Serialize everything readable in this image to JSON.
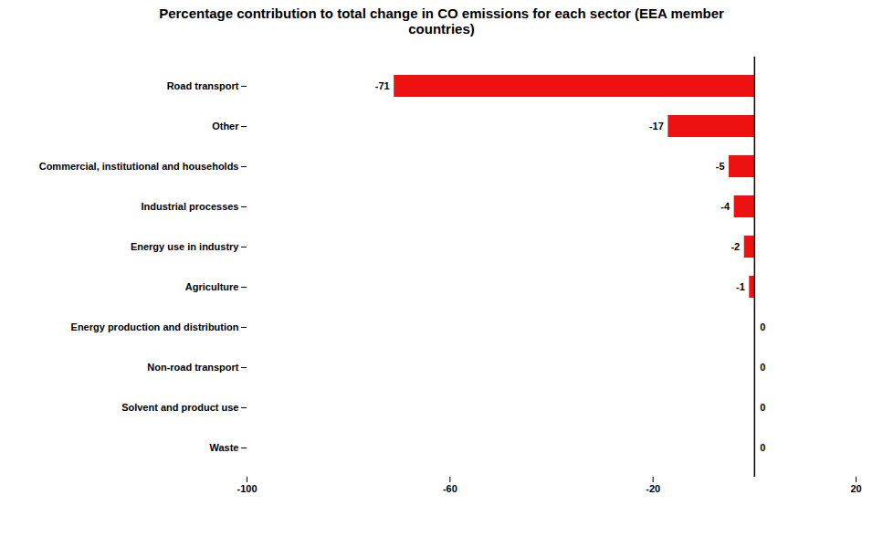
{
  "chart_data": {
    "type": "bar",
    "orientation": "horizontal",
    "title": "Percentage contribution to total change in CO emissions for each sector (EEA member\ncountries)",
    "categories": [
      "Waste",
      "Solvent and product use",
      "Non-road transport",
      "Energy production and distribution",
      "Agriculture",
      "Energy use in industry",
      "Industrial processes",
      "Commercial, institutional and households",
      "Other",
      "Road transport"
    ],
    "values": [
      0,
      0,
      0,
      0,
      -1,
      -2,
      -4,
      -5,
      -17,
      -71
    ],
    "color": "#ee1111",
    "xlim": [
      -100,
      20
    ],
    "xticks": [
      -100,
      -60,
      -20,
      20
    ],
    "data_labels": true,
    "grid": false
  }
}
